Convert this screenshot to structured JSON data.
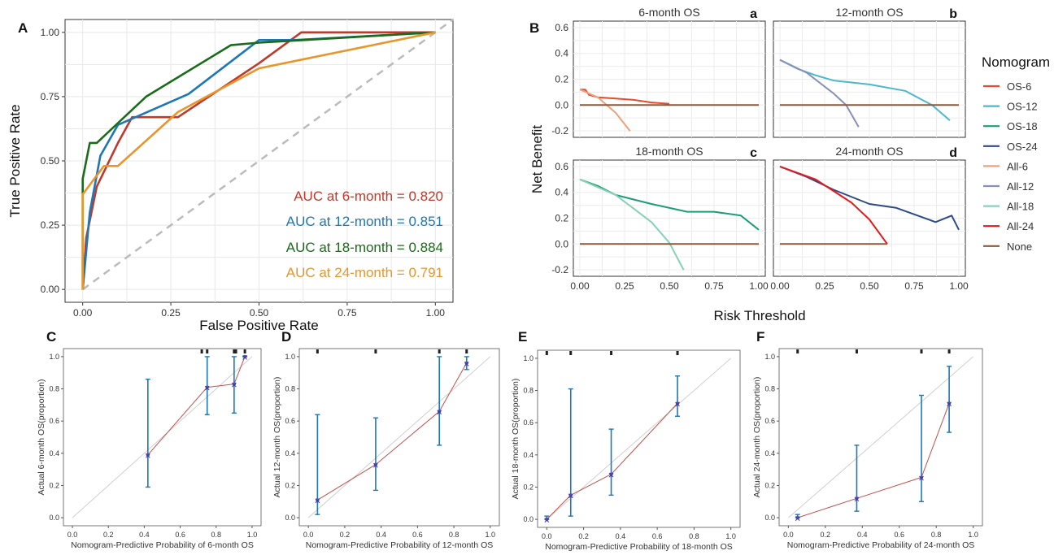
{
  "figure": {
    "panel_labels": [
      "A",
      "B",
      "C",
      "D",
      "E",
      "F"
    ]
  },
  "chart_data": [
    {
      "panel": "A",
      "type": "line",
      "xlabel": "False Positive Rate",
      "ylabel": "True Positive Rate",
      "xlim": [
        0,
        1
      ],
      "ylim": [
        0,
        1
      ],
      "x_ticks": [
        "0.00",
        "0.25",
        "0.50",
        "0.75",
        "1.00"
      ],
      "y_ticks": [
        "0.00",
        "0.25",
        "0.50",
        "0.75",
        "1.00"
      ],
      "grid": true,
      "series": [
        {
          "name": "AUC at 6-month = 0.820",
          "color": "#c0392b",
          "points": [
            [
              0,
              0
            ],
            [
              0.01,
              0.2
            ],
            [
              0.04,
              0.4
            ],
            [
              0.1,
              0.57
            ],
            [
              0.14,
              0.67
            ],
            [
              0.27,
              0.67
            ],
            [
              0.5,
              0.88
            ],
            [
              0.62,
              1.0
            ],
            [
              1,
              1
            ]
          ]
        },
        {
          "name": "AUC at 12-month = 0.851",
          "color": "#1f77b4",
          "points": [
            [
              0,
              0
            ],
            [
              0.02,
              0.3
            ],
            [
              0.05,
              0.52
            ],
            [
              0.1,
              0.64
            ],
            [
              0.3,
              0.76
            ],
            [
              0.5,
              0.97
            ],
            [
              0.6,
              0.97
            ],
            [
              1,
              1
            ]
          ]
        },
        {
          "name": "AUC at 18-month = 0.884",
          "color": "#1a6b1a",
          "points": [
            [
              0,
              0
            ],
            [
              0,
              0.43
            ],
            [
              0.02,
              0.57
            ],
            [
              0.04,
              0.57
            ],
            [
              0.18,
              0.75
            ],
            [
              0.42,
              0.95
            ],
            [
              0.5,
              0.96
            ],
            [
              1,
              1
            ]
          ]
        },
        {
          "name": "AUC at 24-month = 0.791",
          "color": "#e8952b",
          "points": [
            [
              0,
              0
            ],
            [
              0,
              0.37
            ],
            [
              0.06,
              0.48
            ],
            [
              0.1,
              0.48
            ],
            [
              0.27,
              0.69
            ],
            [
              0.5,
              0.86
            ],
            [
              1,
              1
            ]
          ]
        }
      ],
      "reference": {
        "points": [
          [
            0,
            0
          ],
          [
            1,
            1
          ]
        ],
        "color": "#bbbbbb"
      },
      "annotations": [
        {
          "text": "AUC at 6-month = 0.820",
          "color": "#c0392b"
        },
        {
          "text": "AUC at 12-month = 0.851",
          "color": "#1f77b4"
        },
        {
          "text": "AUC at 18-month = 0.884",
          "color": "#1a6b1a"
        },
        {
          "text": "AUC at 24-month = 0.791",
          "color": "#e8952b"
        }
      ]
    },
    {
      "panel": "B",
      "type": "line",
      "xlabel": "Risk Threshold",
      "ylabel": "Net Benefit",
      "legend_title": "Nomogram",
      "legend": [
        {
          "label": "OS-6",
          "color": "#e84a2c"
        },
        {
          "label": "OS-12",
          "color": "#4ab8d0"
        },
        {
          "label": "OS-18",
          "color": "#1b9e77"
        },
        {
          "label": "OS-24",
          "color": "#2f4a8a"
        },
        {
          "label": "All-6",
          "color": "#f0a07a"
        },
        {
          "label": "All-12",
          "color": "#8890b8"
        },
        {
          "label": "All-18",
          "color": "#88d0b8"
        },
        {
          "label": "All-24",
          "color": "#e41a1c"
        },
        {
          "label": "None",
          "color": "#8b5a3c"
        }
      ],
      "x_ticks": [
        "0.00",
        "0.25",
        "0.50",
        "0.75",
        "1.00"
      ],
      "facets": [
        {
          "title": "6-month OS",
          "tag": "a",
          "y_ticks": [
            "-0.2",
            "0.0",
            "0.2",
            "0.4",
            "0.6"
          ],
          "ylim": [
            -0.25,
            0.65
          ],
          "series": [
            {
              "name": "OS-6",
              "color": "#e84a2c",
              "points": [
                [
                  0,
                  0.12
                ],
                [
                  0.03,
                  0.12
                ],
                [
                  0.05,
                  0.08
                ],
                [
                  0.1,
                  0.06
                ],
                [
                  0.2,
                  0.05
                ],
                [
                  0.3,
                  0.04
                ],
                [
                  0.4,
                  0.02
                ],
                [
                  0.5,
                  0.01
                ]
              ]
            },
            {
              "name": "All-6",
              "color": "#f0a07a",
              "points": [
                [
                  0,
                  0.12
                ],
                [
                  0.1,
                  0.06
                ],
                [
                  0.2,
                  -0.06
                ],
                [
                  0.28,
                  -0.2
                ]
              ]
            },
            {
              "name": "None",
              "color": "#8b5a3c",
              "points": [
                [
                  0,
                  0
                ],
                [
                  1,
                  0
                ]
              ]
            }
          ]
        },
        {
          "title": "12-month OS",
          "tag": "b",
          "y_ticks": [],
          "ylim": [
            -0.25,
            0.65
          ],
          "series": [
            {
              "name": "OS-12",
              "color": "#4ab8d0",
              "points": [
                [
                  0,
                  0.35
                ],
                [
                  0.1,
                  0.28
                ],
                [
                  0.2,
                  0.23
                ],
                [
                  0.3,
                  0.19
                ],
                [
                  0.5,
                  0.16
                ],
                [
                  0.7,
                  0.11
                ],
                [
                  0.85,
                  0
                ],
                [
                  0.95,
                  -0.12
                ]
              ]
            },
            {
              "name": "All-12",
              "color": "#8890b8",
              "points": [
                [
                  0,
                  0.35
                ],
                [
                  0.15,
                  0.25
                ],
                [
                  0.3,
                  0.09
                ],
                [
                  0.37,
                  0
                ],
                [
                  0.44,
                  -0.17
                ]
              ]
            },
            {
              "name": "None",
              "color": "#8b5a3c",
              "points": [
                [
                  0,
                  0
                ],
                [
                  1,
                  0
                ]
              ]
            }
          ]
        },
        {
          "title": "18-month OS",
          "tag": "c",
          "y_ticks": [
            "-0.2",
            "0.0",
            "0.2",
            "0.4",
            "0.6"
          ],
          "ylim": [
            -0.25,
            0.65
          ],
          "series": [
            {
              "name": "OS-18",
              "color": "#1b9e77",
              "points": [
                [
                  0,
                  0.5
                ],
                [
                  0.1,
                  0.45
                ],
                [
                  0.2,
                  0.38
                ],
                [
                  0.4,
                  0.31
                ],
                [
                  0.6,
                  0.25
                ],
                [
                  0.75,
                  0.25
                ],
                [
                  0.9,
                  0.22
                ],
                [
                  1,
                  0.11
                ]
              ]
            },
            {
              "name": "All-18",
              "color": "#88d0b8",
              "points": [
                [
                  0,
                  0.5
                ],
                [
                  0.2,
                  0.38
                ],
                [
                  0.4,
                  0.17
                ],
                [
                  0.5,
                  0.01
                ],
                [
                  0.58,
                  -0.2
                ]
              ]
            },
            {
              "name": "None",
              "color": "#8b5a3c",
              "points": [
                [
                  0,
                  0
                ],
                [
                  1,
                  0
                ]
              ]
            }
          ]
        },
        {
          "title": "24-month OS",
          "tag": "d",
          "y_ticks": [],
          "ylim": [
            -0.25,
            0.65
          ],
          "series": [
            {
              "name": "OS-24",
              "color": "#2f4a8a",
              "points": [
                [
                  0,
                  0.6
                ],
                [
                  0.15,
                  0.52
                ],
                [
                  0.3,
                  0.42
                ],
                [
                  0.5,
                  0.31
                ],
                [
                  0.65,
                  0.28
                ],
                [
                  0.87,
                  0.17
                ],
                [
                  0.96,
                  0.22
                ],
                [
                  1,
                  0.11
                ]
              ]
            },
            {
              "name": "All-24",
              "color": "#e41a1c",
              "points": [
                [
                  0,
                  0.6
                ],
                [
                  0.2,
                  0.5
                ],
                [
                  0.4,
                  0.32
                ],
                [
                  0.5,
                  0.19
                ],
                [
                  0.6,
                  0
                ]
              ]
            },
            {
              "name": "None",
              "color": "#8b5a3c",
              "points": [
                [
                  0,
                  0
                ],
                [
                  0.6,
                  0
                ]
              ]
            }
          ]
        }
      ]
    },
    {
      "panel": "C",
      "type": "scatter",
      "xlabel": "Nomogram-Predictive Probability of 6-month OS",
      "ylabel": "Actual 6-month OS(proportion)",
      "x_ticks": [
        "0.0",
        "0.2",
        "0.4",
        "0.6",
        "0.8",
        "1.0"
      ],
      "y_ticks": [
        "0.0",
        "0.2",
        "0.4",
        "0.6",
        "0.8",
        "1.0"
      ],
      "x": [
        0.42,
        0.75,
        0.9,
        0.96
      ],
      "observed": [
        0.39,
        0.81,
        0.83,
        1.0
      ],
      "ci": [
        [
          0.19,
          0.86
        ],
        [
          0.64,
          1.0
        ],
        [
          0.65,
          1.0
        ],
        [
          1.0,
          1.0
        ]
      ],
      "rug": [
        0.72,
        0.75,
        0.9,
        0.91,
        0.96
      ]
    },
    {
      "panel": "D",
      "type": "scatter",
      "xlabel": "Nomogram-Predictive Probability of 12-month OS",
      "ylabel": "Actual 12-month OS(proportion)",
      "x_ticks": [
        "0.0",
        "0.2",
        "0.4",
        "0.6",
        "0.8",
        "1.0"
      ],
      "y_ticks": [
        "0.0",
        "0.2",
        "0.4",
        "0.6",
        "0.8",
        "1.0"
      ],
      "x": [
        0.05,
        0.37,
        0.72,
        0.87
      ],
      "observed": [
        0.11,
        0.33,
        0.66,
        0.96
      ],
      "ci": [
        [
          0.02,
          0.64
        ],
        [
          0.17,
          0.62
        ],
        [
          0.45,
          1.0
        ],
        [
          0.92,
          1.0
        ]
      ],
      "rug": [
        0.05,
        0.37,
        0.72,
        0.87
      ]
    },
    {
      "panel": "E",
      "type": "scatter",
      "xlabel": "Nomogram-Predictive Probability of 18-month OS",
      "ylabel": "Actual 18-month OS(proportion)",
      "x_ticks": [
        "0.0",
        "0.2",
        "0.4",
        "0.6",
        "0.8",
        "1.0"
      ],
      "y_ticks": [
        "0.0",
        "0.2",
        "0.4",
        "0.6",
        "0.8",
        "1.0"
      ],
      "x": [
        0.0,
        0.13,
        0.35,
        0.71
      ],
      "observed": [
        0.0,
        0.15,
        0.28,
        0.72
      ],
      "ci": [
        [
          0.0,
          0.02
        ],
        [
          0.02,
          0.81
        ],
        [
          0.15,
          0.56
        ],
        [
          0.64,
          0.89
        ]
      ],
      "rug": [
        0.0,
        0.13,
        0.35,
        0.71
      ]
    },
    {
      "panel": "F",
      "type": "scatter",
      "xlabel": "Nomogram-Predictive Probability of 24-month OS",
      "ylabel": "Actual 24-month OS(proportion)",
      "x_ticks": [
        "0.0",
        "0.2",
        "0.4",
        "0.6",
        "0.8",
        "1.0"
      ],
      "y_ticks": [
        "0.0",
        "0.2",
        "0.4",
        "0.6",
        "0.8",
        "1.0"
      ],
      "x": [
        0.05,
        0.37,
        0.72,
        0.87
      ],
      "observed": [
        0.0,
        0.12,
        0.25,
        0.71
      ],
      "ci": [
        [
          0.0,
          0.02
        ],
        [
          0.04,
          0.45
        ],
        [
          0.1,
          0.76
        ],
        [
          0.53,
          0.94
        ]
      ],
      "rug": [
        0.05,
        0.37,
        0.72,
        0.87
      ]
    }
  ]
}
